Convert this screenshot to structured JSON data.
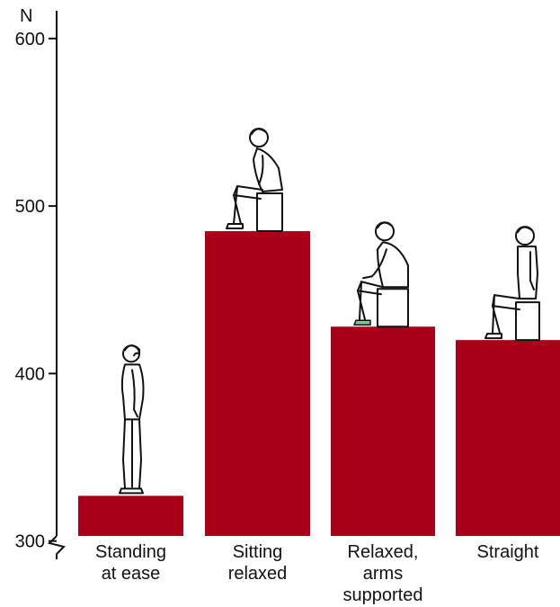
{
  "chart_data": {
    "type": "bar",
    "title": "",
    "xlabel": "",
    "ylabel": "N",
    "ylim": [
      288,
      623
    ],
    "yticks": [
      300,
      400,
      500,
      600
    ],
    "grid": false,
    "legend": "none",
    "bar_color": "#ab0019",
    "categories": [
      [
        "Standing",
        "at ease"
      ],
      [
        "Sitting",
        "relaxed"
      ],
      [
        "Relaxed,",
        "arms",
        "supported"
      ],
      [
        "Straight"
      ]
    ],
    "values": [
      327,
      485,
      428,
      420
    ],
    "figures": [
      "standing-person-icon",
      "sitting-relaxed-person-icon",
      "sitting-arms-supported-person-icon",
      "sitting-straight-person-icon"
    ]
  }
}
